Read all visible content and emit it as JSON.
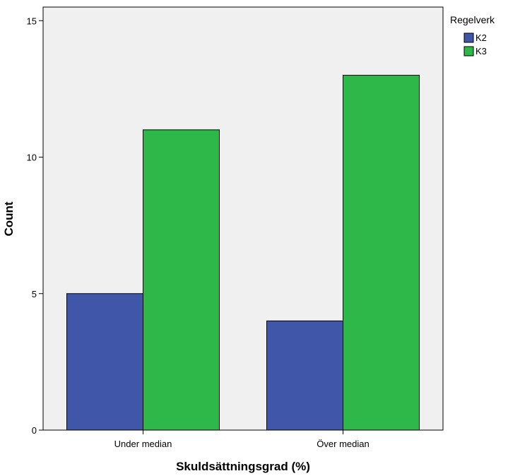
{
  "chart_data": {
    "type": "bar",
    "categories": [
      "Under median",
      "Över median"
    ],
    "series": [
      {
        "name": "K2",
        "values": [
          5,
          4
        ],
        "color": "#3f56a9"
      },
      {
        "name": "K3",
        "values": [
          11,
          13
        ],
        "color": "#2eb84a"
      }
    ],
    "xlabel": "Skuldsättningsgrad (%)",
    "ylabel": "Count",
    "ylim": [
      0,
      15.5
    ],
    "yticks": [
      0,
      5,
      10,
      15
    ],
    "legend_title": "Regelverk",
    "legend_position": "top-right",
    "grid": false,
    "plot_background": "#f0f0f0"
  }
}
